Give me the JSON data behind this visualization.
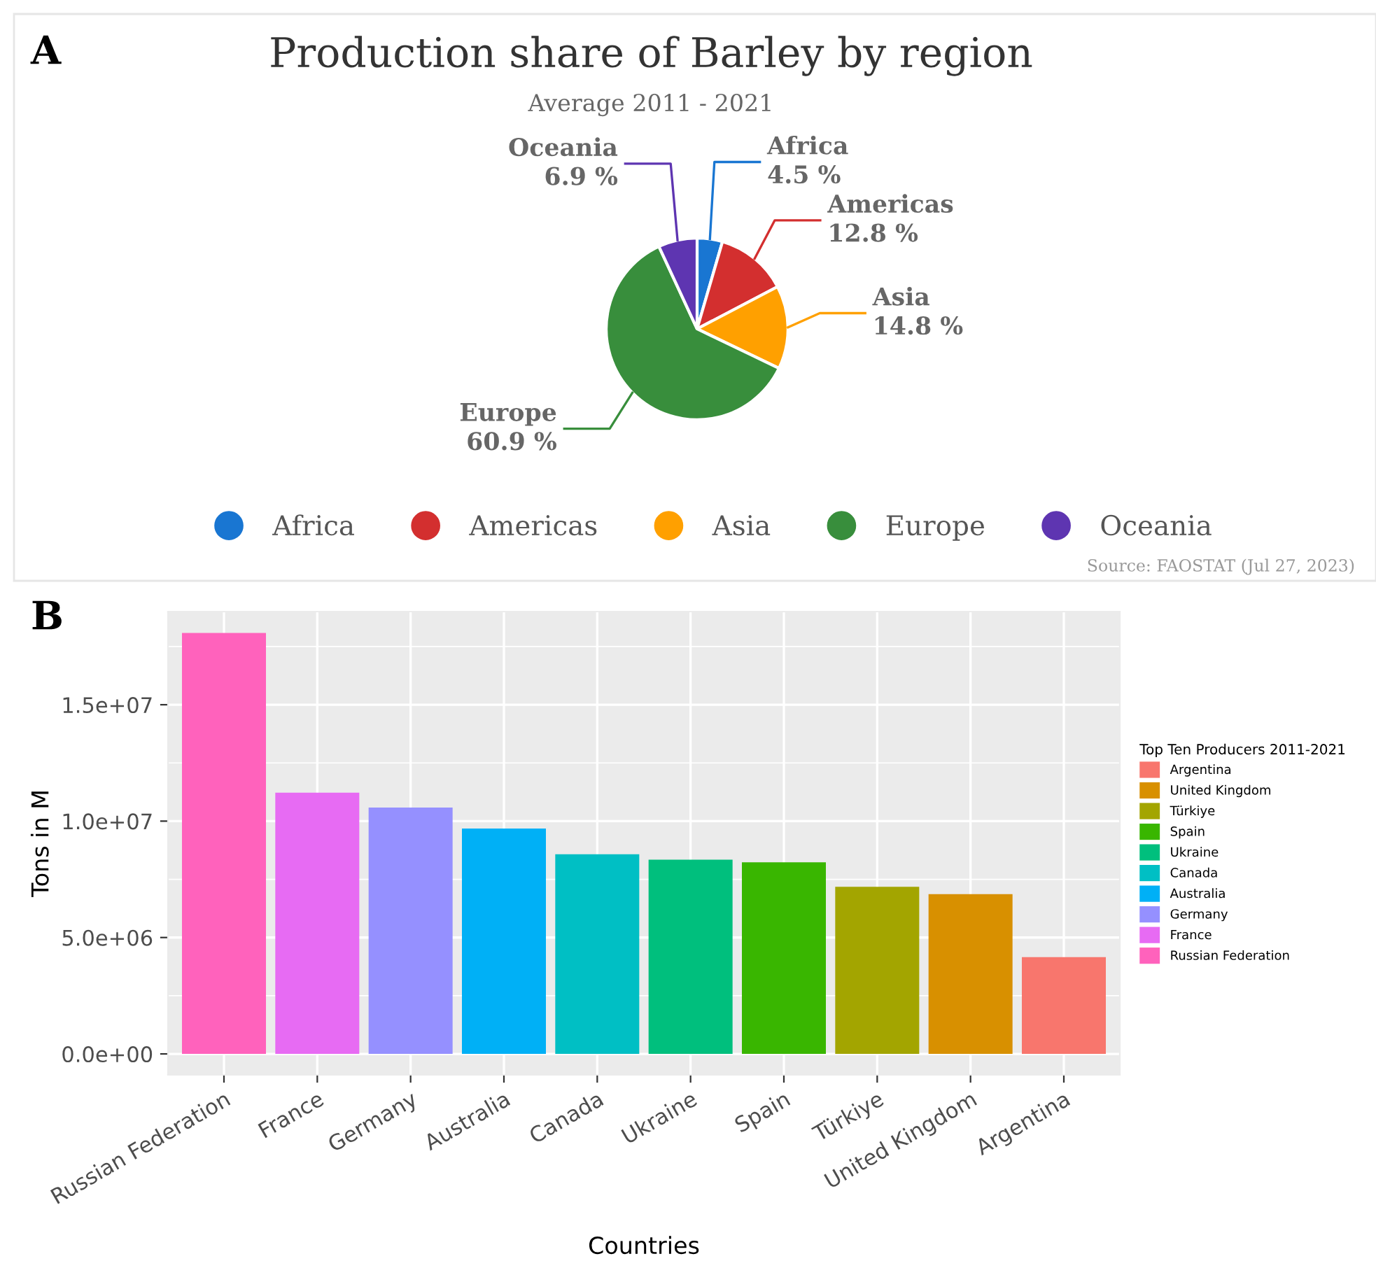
{
  "chart_data": [
    {
      "type": "pie",
      "title": "Production share of Barley by region",
      "subtitle": "Average 2011 - 2021",
      "categories": [
        "Africa",
        "Americas",
        "Asia",
        "Europe",
        "Oceania"
      ],
      "values": [
        4.5,
        12.8,
        14.8,
        60.9,
        6.9
      ],
      "colors": [
        "#1976d2",
        "#d32f2f",
        "#ffa000",
        "#388e3c",
        "#5e35b1"
      ],
      "value_labels": [
        "4.5 %",
        "12.8 %",
        "14.8 %",
        "60.9 %",
        "6.9 %"
      ],
      "legend": "bottom",
      "annotations": [
        "A",
        "Source: FAOSTAT (Jul 27, 2023)"
      ]
    },
    {
      "type": "bar",
      "categories": [
        "Russian Federation",
        "France",
        "Germany",
        "Australia",
        "Canada",
        "Ukraine",
        "Spain",
        "Türkiye",
        "United Kingdom",
        "Argentina"
      ],
      "series": [
        {
          "name": "Russian Federation",
          "color": "#FF62BC",
          "values": [
            18080000,
            null,
            null,
            null,
            null,
            null,
            null,
            null,
            null,
            null
          ]
        },
        {
          "name": "France",
          "color": "#E76BF3",
          "values": [
            null,
            11220000,
            null,
            null,
            null,
            null,
            null,
            null,
            null,
            null
          ]
        },
        {
          "name": "Germany",
          "color": "#9590FF",
          "values": [
            null,
            null,
            10580000,
            null,
            null,
            null,
            null,
            null,
            null,
            null
          ]
        },
        {
          "name": "Australia",
          "color": "#00B0F6",
          "values": [
            null,
            null,
            null,
            9680000,
            null,
            null,
            null,
            null,
            null,
            null
          ]
        },
        {
          "name": "Canada",
          "color": "#00BFC4",
          "values": [
            null,
            null,
            null,
            null,
            8580000,
            null,
            null,
            null,
            null,
            null
          ]
        },
        {
          "name": "Ukraine",
          "color": "#00BF7D",
          "values": [
            null,
            null,
            null,
            null,
            null,
            8340000,
            null,
            null,
            null,
            null
          ]
        },
        {
          "name": "Spain",
          "color": "#39B600",
          "values": [
            null,
            null,
            null,
            null,
            null,
            null,
            8230000,
            null,
            null,
            null
          ]
        },
        {
          "name": "Türkiye",
          "color": "#A3A500",
          "values": [
            null,
            null,
            null,
            null,
            null,
            null,
            null,
            7180000,
            null,
            null
          ]
        },
        {
          "name": "United Kingdom",
          "color": "#D89000",
          "values": [
            null,
            null,
            null,
            null,
            null,
            null,
            null,
            null,
            6860000,
            null
          ]
        },
        {
          "name": "Argentina",
          "color": "#F8766D",
          "values": [
            null,
            null,
            null,
            null,
            null,
            null,
            null,
            null,
            null,
            4160000
          ]
        }
      ],
      "xlabel": "Countries",
      "ylabel": "Tons in M",
      "ylim": [
        -900000,
        19000000
      ],
      "yticks": [
        {
          "value": 0,
          "label": "0.0e+00"
        },
        {
          "value": 5000000,
          "label": "5.0e+06"
        },
        {
          "value": 10000000,
          "label": "1.0e+07"
        },
        {
          "value": 15000000,
          "label": "1.5e+07"
        }
      ],
      "grid": true,
      "legend": "right",
      "legend_title": "Top Ten Producers 2011-2021",
      "annotations": [
        "B"
      ]
    }
  ]
}
